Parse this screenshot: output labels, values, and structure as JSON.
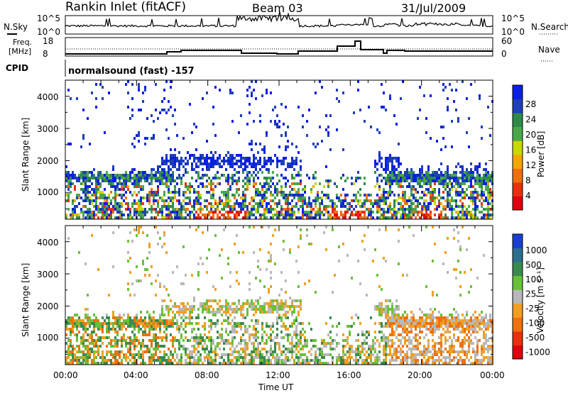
{
  "header": {
    "station": "Rankin Inlet (fitACF)",
    "beam": "Beam 03",
    "date": "31/Jul/2009"
  },
  "noise_panel": {
    "left_label": "N.Sky",
    "right_label": "N.Search",
    "left_ticks": [
      "10^5",
      "10^0"
    ],
    "right_ticks": [
      "10^5",
      "10^0"
    ]
  },
  "freq_panel": {
    "left_label_1": "Freq.",
    "left_label_2": "[MHz]",
    "right_label": "Nave",
    "left_ticks": [
      "18",
      "8"
    ],
    "right_ticks": [
      "60",
      "0"
    ]
  },
  "cpid_panel": {
    "label": "CPID",
    "text": "normalsound (fast) -157"
  },
  "chart_data": [
    {
      "type": "heatmap",
      "name": "power",
      "ylabel": "Slant Range [km]",
      "xlabel": "",
      "y_ticks": [
        "1000",
        "2000",
        "3000",
        "4000"
      ],
      "ylim": [
        180,
        4500
      ],
      "colorbar_label": "Power [dB]",
      "colorbar_ticks": [
        "4",
        "8",
        "12",
        "16",
        "20",
        "24",
        "28"
      ],
      "colorbar_colors": [
        "#0a1fe6",
        "#1f3fb8",
        "#2f8a4a",
        "#4aa84a",
        "#c8d800",
        "#f2a800",
        "#f07010",
        "#e83010",
        "#e00010"
      ]
    },
    {
      "type": "heatmap",
      "name": "velocity",
      "ylabel": "Slant Range [km]",
      "xlabel": "Time UT",
      "x_ticks": [
        "00:00",
        "04:00",
        "08:00",
        "12:00",
        "16:00",
        "20:00",
        "00:00"
      ],
      "y_ticks": [
        "1000",
        "2000",
        "3000",
        "4000"
      ],
      "ylim": [
        180,
        4500
      ],
      "colorbar_label": "Velocity [m s⁻¹]",
      "colorbar_ticks": [
        "1000",
        "500",
        "100",
        "25",
        "-25",
        "-100",
        "-500",
        "-1000"
      ],
      "colorbar_colors": [
        "#1a3fd0",
        "#2c6e8c",
        "#3a8a50",
        "#6ac03a",
        "#b8b8b8",
        "#f0a020",
        "#f07010",
        "#e83010",
        "#e00010"
      ]
    }
  ]
}
